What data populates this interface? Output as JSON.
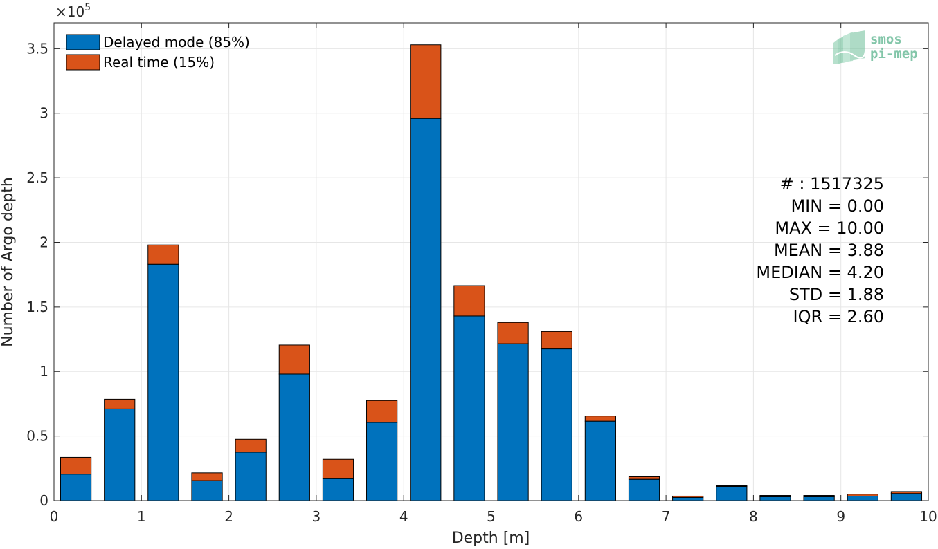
{
  "chart_data": {
    "type": "bar",
    "stacked": true,
    "xlabel": "Depth [m]",
    "ylabel": "Number of Argo depth",
    "xlim": [
      0,
      10
    ],
    "ylim": [
      0,
      370000
    ],
    "y_exponent_label": "×10",
    "y_exponent": "5",
    "x_ticks": [
      0,
      1,
      2,
      3,
      4,
      5,
      6,
      7,
      8,
      9,
      10
    ],
    "x_tick_labels": [
      "0",
      "1",
      "2",
      "3",
      "4",
      "5",
      "6",
      "7",
      "8",
      "9",
      "10"
    ],
    "y_ticks": [
      0,
      50000,
      100000,
      150000,
      200000,
      250000,
      300000,
      350000
    ],
    "y_tick_labels": [
      "0",
      "0.5",
      "1",
      "1.5",
      "2",
      "2.5",
      "3",
      "3.5"
    ],
    "grid": true,
    "legend_placement": "top-left",
    "bar_centers": [
      0.25,
      0.75,
      1.25,
      1.75,
      2.25,
      2.75,
      3.25,
      3.75,
      4.25,
      4.75,
      5.25,
      5.75,
      6.25,
      6.75,
      7.25,
      7.75,
      8.25,
      8.75,
      9.25,
      9.75
    ],
    "bar_width_data": 0.35,
    "series": [
      {
        "name": "Delayed mode (85%)",
        "color": "#0072bd",
        "values": [
          20500,
          71000,
          183000,
          15500,
          37500,
          98000,
          17000,
          60500,
          296000,
          143000,
          121500,
          117500,
          61500,
          16500,
          2500,
          11000,
          3000,
          3000,
          3500,
          5500
        ]
      },
      {
        "name": "Real time (15%)",
        "color": "#d95319",
        "values": [
          13000,
          7500,
          15000,
          6000,
          10000,
          22500,
          15000,
          17000,
          57000,
          23500,
          16500,
          13500,
          4000,
          2000,
          1000,
          500,
          1000,
          1000,
          1500,
          1500
        ]
      }
    ],
    "stats_lines": [
      "# : 1517325",
      "MIN = 0.00",
      "MAX =  10.00",
      "MEAN = 3.88",
      "MEDIAN = 4.20",
      "STD = 1.88",
      "IQR = 2.60"
    ]
  },
  "logo": {
    "line1": "smos",
    "line2": "pi-mep",
    "color": "#4fae86"
  }
}
